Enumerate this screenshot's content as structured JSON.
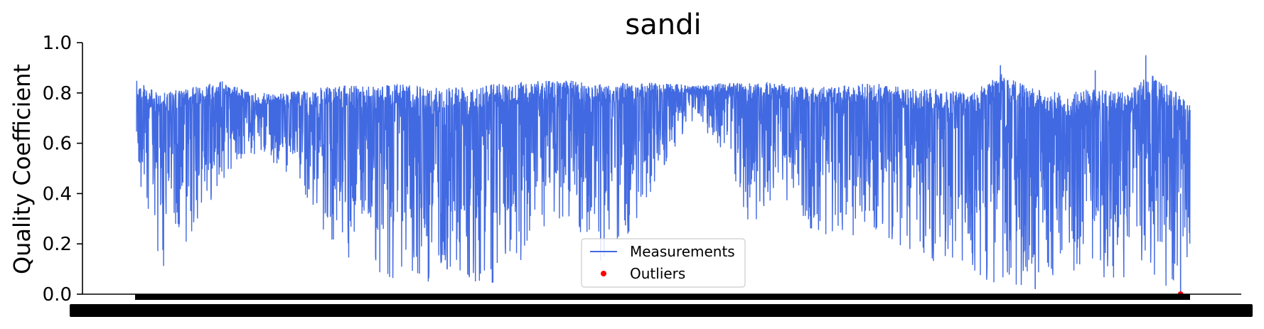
{
  "chart_data": {
    "type": "line",
    "title": "sandi",
    "ylabel": "Quality Coefficient",
    "xlabel": "",
    "ylim": [
      0.0,
      1.0
    ],
    "yticks": [
      "0.0",
      "0.2",
      "0.4",
      "0.6",
      "0.8",
      "1.0"
    ],
    "grid": false,
    "legend_position": "lower-center",
    "series": [
      {
        "name": "Measurements",
        "color": "#4169E1",
        "envelope": [
          {
            "x": 0.0,
            "lo": 0.4,
            "hi": 0.85
          },
          {
            "x": 0.02,
            "lo": 0.08,
            "hi": 0.8
          },
          {
            "x": 0.05,
            "lo": 0.2,
            "hi": 0.82
          },
          {
            "x": 0.08,
            "lo": 0.45,
            "hi": 0.85
          },
          {
            "x": 0.11,
            "lo": 0.55,
            "hi": 0.8
          },
          {
            "x": 0.14,
            "lo": 0.5,
            "hi": 0.8
          },
          {
            "x": 0.17,
            "lo": 0.3,
            "hi": 0.82
          },
          {
            "x": 0.2,
            "lo": 0.12,
            "hi": 0.83
          },
          {
            "x": 0.24,
            "lo": 0.04,
            "hi": 0.84
          },
          {
            "x": 0.28,
            "lo": 0.05,
            "hi": 0.82
          },
          {
            "x": 0.32,
            "lo": 0.05,
            "hi": 0.84
          },
          {
            "x": 0.35,
            "lo": 0.04,
            "hi": 0.84
          },
          {
            "x": 0.38,
            "lo": 0.2,
            "hi": 0.85
          },
          {
            "x": 0.41,
            "lo": 0.3,
            "hi": 0.85
          },
          {
            "x": 0.44,
            "lo": 0.12,
            "hi": 0.84
          },
          {
            "x": 0.47,
            "lo": 0.25,
            "hi": 0.84
          },
          {
            "x": 0.5,
            "lo": 0.5,
            "hi": 0.84
          },
          {
            "x": 0.53,
            "lo": 0.7,
            "hi": 0.83
          },
          {
            "x": 0.56,
            "lo": 0.55,
            "hi": 0.84
          },
          {
            "x": 0.58,
            "lo": 0.25,
            "hi": 0.84
          },
          {
            "x": 0.61,
            "lo": 0.4,
            "hi": 0.84
          },
          {
            "x": 0.64,
            "lo": 0.25,
            "hi": 0.82
          },
          {
            "x": 0.67,
            "lo": 0.2,
            "hi": 0.83
          },
          {
            "x": 0.7,
            "lo": 0.25,
            "hi": 0.84
          },
          {
            "x": 0.73,
            "lo": 0.18,
            "hi": 0.82
          },
          {
            "x": 0.76,
            "lo": 0.12,
            "hi": 0.82
          },
          {
            "x": 0.79,
            "lo": 0.05,
            "hi": 0.8
          },
          {
            "x": 0.82,
            "lo": 0.04,
            "hi": 0.88
          },
          {
            "x": 0.85,
            "lo": 0.02,
            "hi": 0.82
          },
          {
            "x": 0.88,
            "lo": 0.05,
            "hi": 0.8
          },
          {
            "x": 0.91,
            "lo": 0.05,
            "hi": 0.82
          },
          {
            "x": 0.94,
            "lo": 0.05,
            "hi": 0.8
          },
          {
            "x": 0.96,
            "lo": 0.05,
            "hi": 0.88
          },
          {
            "x": 0.98,
            "lo": 0.02,
            "hi": 0.83
          },
          {
            "x": 1.0,
            "lo": 0.15,
            "hi": 0.75
          }
        ],
        "spikes": [
          {
            "x": 0.82,
            "y": 0.91
          },
          {
            "x": 0.91,
            "y": 0.89
          },
          {
            "x": 0.958,
            "y": 0.95
          },
          {
            "x": 0.853,
            "y": 0.02
          },
          {
            "x": 0.991,
            "y": 0.01
          }
        ]
      },
      {
        "name": "Outliers",
        "color": "#FF0000",
        "points": [
          {
            "x": 0.991,
            "y": 0.0
          }
        ]
      }
    ]
  }
}
